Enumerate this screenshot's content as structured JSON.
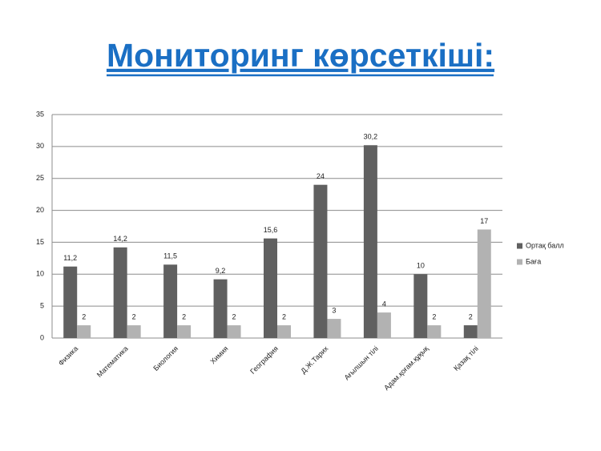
{
  "chart_data": {
    "type": "bar",
    "title": "Мониторинг көрсеткіші:",
    "categories": [
      "Физика",
      "Математика",
      "Биология",
      "Химия",
      "География",
      "Д.Ж.Тарих",
      "Ағылшын тілі",
      "Адам.қоғам.құқық",
      "Қазақ тілі"
    ],
    "series": [
      {
        "name": "Ортақ балл",
        "color": "#606060",
        "values": [
          11.2,
          14.2,
          11.5,
          9.2,
          15.6,
          24,
          30.2,
          10,
          2
        ],
        "value_labels": [
          "11,2",
          "14,2",
          "11,5",
          "9,2",
          "15,6",
          "24",
          "30,2",
          "10",
          "2"
        ]
      },
      {
        "name": "Баға",
        "color": "#b2b2b2",
        "values": [
          2,
          2,
          2,
          2,
          2,
          3,
          4,
          2,
          17
        ],
        "value_labels": [
          "2",
          "2",
          "2",
          "2",
          "2",
          "3",
          "4",
          "2",
          "17"
        ]
      }
    ],
    "ylim": [
      0,
      35
    ],
    "yticks": [
      0,
      5,
      10,
      15,
      20,
      25,
      30,
      35
    ],
    "grid": true,
    "legend": "right"
  }
}
